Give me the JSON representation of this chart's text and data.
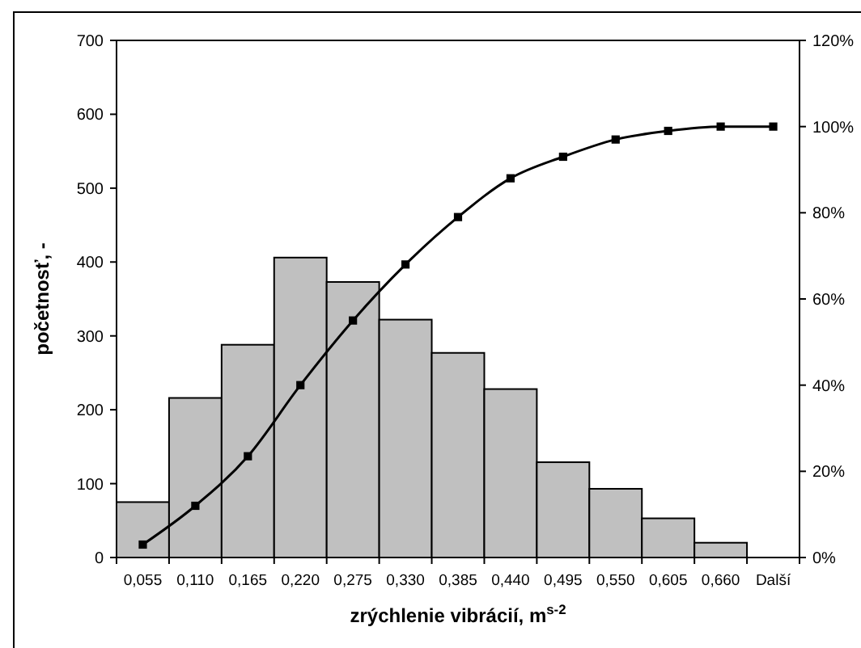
{
  "chart_data": {
    "type": "bar",
    "xlabel": "zrýchlenie vibrácií, m$^{s-2}$",
    "ylabel": "početnosť, -",
    "categories": [
      "0,055",
      "0,110",
      "0,165",
      "0,220",
      "0,275",
      "0,330",
      "0,385",
      "0,440",
      "0,495",
      "0,550",
      "0,605",
      "0,660",
      "Další"
    ],
    "series": [
      {
        "color": "#c0c0c0",
        "values": [
          75,
          216,
          288,
          406,
          373,
          322,
          277,
          228,
          129,
          93,
          53,
          20,
          0
        ]
      },
      {
        "type": "line",
        "axis": "y2",
        "color": "#000000",
        "marker": "square",
        "values": [
          3,
          12,
          23.5,
          40,
          55,
          68,
          79,
          88,
          93,
          97,
          99,
          100,
          100
        ]
      }
    ],
    "ylim": [
      0,
      700
    ],
    "yticks": [
      0,
      100,
      200,
      300,
      400,
      500,
      600,
      700
    ],
    "y2lim": [
      0,
      120
    ],
    "y2ticks": [
      {
        "value": 0,
        "label": "0%"
      },
      {
        "value": 20,
        "label": "20%"
      },
      {
        "value": 40,
        "label": "40%"
      },
      {
        "value": 60,
        "label": "60%"
      },
      {
        "value": 80,
        "label": "80%"
      },
      {
        "value": 100,
        "label": "100%"
      },
      {
        "value": 120,
        "label": "120%"
      }
    ],
    "grid": false
  }
}
